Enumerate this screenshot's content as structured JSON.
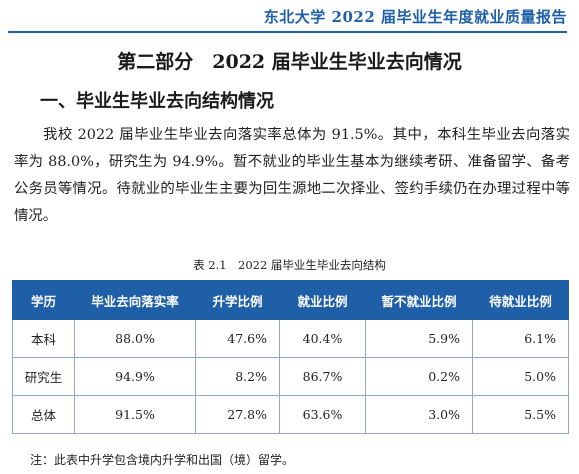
{
  "header": {
    "running_title": "东北大学 2022 届毕业生年度就业质量报告"
  },
  "part_title": "第二部分　2022 届毕业生毕业去向情况",
  "section_title": "一、毕业生毕业去向结构情况",
  "paragraph": "我校 2022 届毕业生毕业去向落实率总体为 91.5%。其中，本科生毕业去向落实率为 88.0%，研究生为 94.9%。暂不就业的毕业生基本为继续考研、准备留学、备考公务员等情况。待就业的毕业生主要为回生源地二次择业、签约手续仍在办理过程中等情况。",
  "table": {
    "caption": "表 2.1　2022 届毕业生毕业去向结构",
    "headers": [
      "学历",
      "毕业去向落实率",
      "升学比例",
      "就业比例",
      "暂不就业比例",
      "待就业比例"
    ],
    "rows": [
      [
        "本科",
        "88.0%",
        "47.6%",
        "40.4%",
        "5.9%",
        "6.1%"
      ],
      [
        "研究生",
        "94.9%",
        "8.2%",
        "86.7%",
        "0.2%",
        "5.0%"
      ],
      [
        "总体",
        "91.5%",
        "27.8%",
        "63.6%",
        "3.0%",
        "5.5%"
      ]
    ]
  },
  "note": "注：此表中升学包含境内升学和出国（境）留学。",
  "colors": {
    "accent": "#1f5fa8",
    "table_header_bg": "#1f5fa8",
    "table_header_text": "#ffffff",
    "grid_line": "#8fa9c7"
  }
}
